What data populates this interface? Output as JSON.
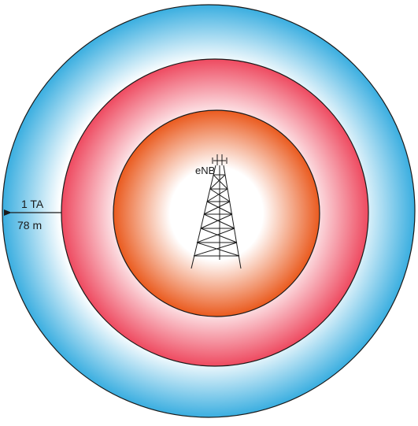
{
  "diagram": {
    "tower_label": "eNB",
    "ta_label": "1 TA",
    "distance_label": "78 m",
    "ring_colors": {
      "outer": "#3aaee0",
      "middle": "#ee4a60",
      "inner": "#ea5a1e",
      "center": "#ffffff",
      "outline": "#1a1a1a"
    }
  }
}
